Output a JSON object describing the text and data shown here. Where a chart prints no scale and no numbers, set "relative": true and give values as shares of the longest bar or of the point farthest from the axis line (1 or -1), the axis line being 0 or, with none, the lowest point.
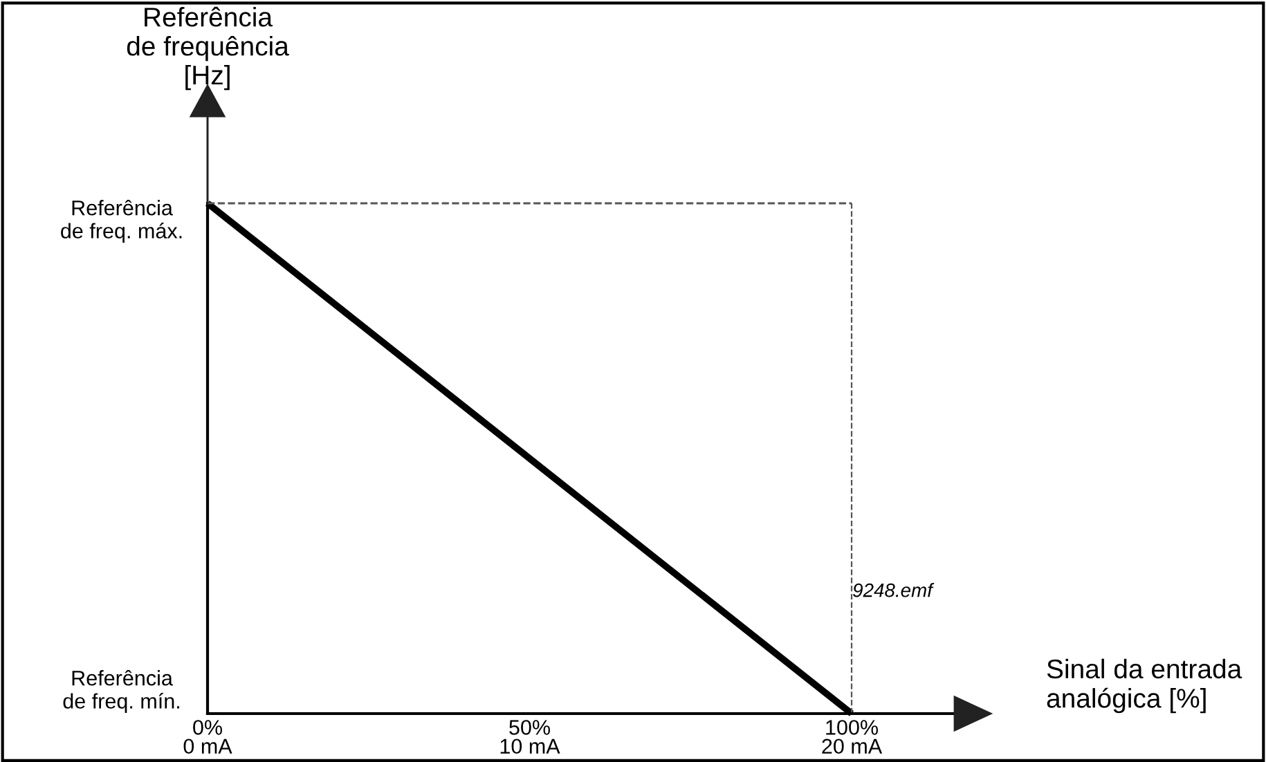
{
  "chart_data": {
    "type": "line",
    "ylabel": "Referência\nde frequência\n[Hz]",
    "xlabel": "Sinal da entrada\nanalógica [%]",
    "x": [
      0,
      100
    ],
    "series": [
      {
        "color": "#000000",
        "values": [
          1,
          0
        ]
      }
    ],
    "relative": true,
    "xlim": [
      0,
      116
    ],
    "xticks": [
      {
        "value": 0,
        "label": "0%"
      },
      {
        "value": 50,
        "label": "50%"
      },
      {
        "value": 100,
        "label": "100%"
      }
    ],
    "x2lim": [
      0,
      23.2
    ],
    "x2ticks": [
      {
        "value": 0,
        "label": "0 mA"
      },
      {
        "value": 10,
        "label": "10 mA"
      },
      {
        "value": 20,
        "label": "20 mA"
      }
    ],
    "ref_lines": [
      {
        "axis": "y",
        "value": 1,
        "color": "#555555",
        "line_style": "dashed"
      },
      {
        "axis": "x",
        "value": 100,
        "color": "#555555",
        "line_style": "dashed"
      }
    ],
    "annotations": [
      "Referência\nde freq. máx.",
      "Referência\nde freq. mín.",
      "9248.emf"
    ],
    "grid": false,
    "legend": false,
    "marker": "none",
    "line_style": "solid"
  }
}
